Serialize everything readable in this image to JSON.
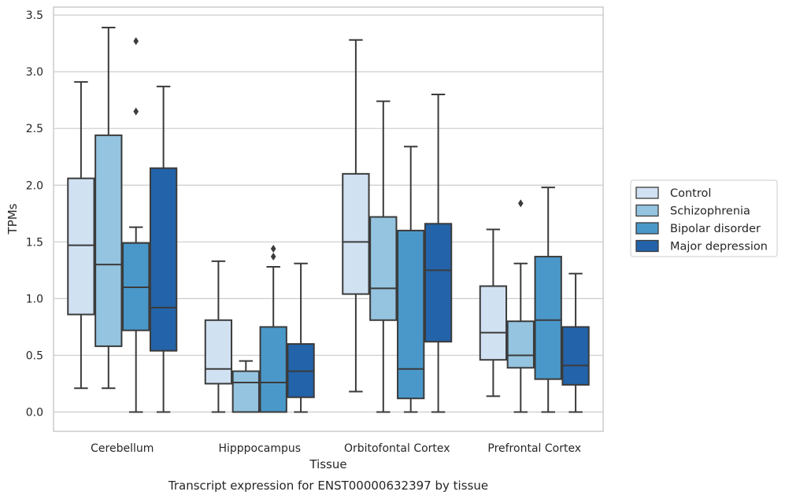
{
  "chart_data": {
    "type": "box",
    "caption": "Transcript expression for ENST00000632397 by tissue",
    "xlabel": "Tissue",
    "ylabel": "TPMs",
    "ylim": [
      -0.17,
      3.57
    ],
    "yticks": [
      "0.0",
      "0.5",
      "1.0",
      "1.5",
      "2.0",
      "2.5",
      "3.0",
      "3.5"
    ],
    "grid": true,
    "legend_position": "right",
    "categories": [
      "Cerebellum",
      "Hipppocampus",
      "Orbitofontal Cortex",
      "Prefrontal Cortex"
    ],
    "series": [
      {
        "name": "Control",
        "color": "#d0e1f2",
        "boxes": [
          {
            "whisker_low": 0.21,
            "q1": 0.86,
            "median": 1.47,
            "q3": 2.06,
            "whisker_high": 2.91,
            "outliers": []
          },
          {
            "whisker_low": 0.0,
            "q1": 0.25,
            "median": 0.38,
            "q3": 0.81,
            "whisker_high": 1.33,
            "outliers": []
          },
          {
            "whisker_low": 0.18,
            "q1": 1.04,
            "median": 1.5,
            "q3": 2.1,
            "whisker_high": 3.28,
            "outliers": []
          },
          {
            "whisker_low": 0.14,
            "q1": 0.46,
            "median": 0.7,
            "q3": 1.11,
            "whisker_high": 1.61,
            "outliers": []
          }
        ]
      },
      {
        "name": "Schizophrenia",
        "color": "#94c4df",
        "boxes": [
          {
            "whisker_low": 0.21,
            "q1": 0.58,
            "median": 1.3,
            "q3": 2.44,
            "whisker_high": 3.39,
            "outliers": []
          },
          {
            "whisker_low": 0.0,
            "q1": 0.0,
            "median": 0.26,
            "q3": 0.36,
            "whisker_high": 0.45,
            "outliers": []
          },
          {
            "whisker_low": 0.0,
            "q1": 0.81,
            "median": 1.09,
            "q3": 1.72,
            "whisker_high": 2.74,
            "outliers": []
          },
          {
            "whisker_low": 0.0,
            "q1": 0.39,
            "median": 0.5,
            "q3": 0.8,
            "whisker_high": 1.31,
            "outliers": [
              1.84
            ]
          }
        ]
      },
      {
        "name": "Bipolar disorder",
        "color": "#4a98c9",
        "boxes": [
          {
            "whisker_low": 0.0,
            "q1": 0.72,
            "median": 1.1,
            "q3": 1.49,
            "whisker_high": 1.63,
            "outliers": [
              2.65,
              3.27
            ]
          },
          {
            "whisker_low": 0.0,
            "q1": 0.0,
            "median": 0.26,
            "q3": 0.75,
            "whisker_high": 1.28,
            "outliers": [
              1.37,
              1.44
            ]
          },
          {
            "whisker_low": 0.0,
            "q1": 0.12,
            "median": 0.38,
            "q3": 1.6,
            "whisker_high": 2.34,
            "outliers": []
          },
          {
            "whisker_low": 0.0,
            "q1": 0.29,
            "median": 0.81,
            "q3": 1.37,
            "whisker_high": 1.98,
            "outliers": []
          }
        ]
      },
      {
        "name": "Major depression",
        "color": "#2363a9",
        "boxes": [
          {
            "whisker_low": 0.0,
            "q1": 0.54,
            "median": 0.92,
            "q3": 2.15,
            "whisker_high": 2.87,
            "outliers": []
          },
          {
            "whisker_low": 0.0,
            "q1": 0.13,
            "median": 0.36,
            "q3": 0.6,
            "whisker_high": 1.31,
            "outliers": []
          },
          {
            "whisker_low": 0.0,
            "q1": 0.62,
            "median": 1.25,
            "q3": 1.66,
            "whisker_high": 2.8,
            "outliers": []
          },
          {
            "whisker_low": 0.0,
            "q1": 0.24,
            "median": 0.41,
            "q3": 0.75,
            "whisker_high": 1.22,
            "outliers": []
          }
        ]
      }
    ]
  }
}
